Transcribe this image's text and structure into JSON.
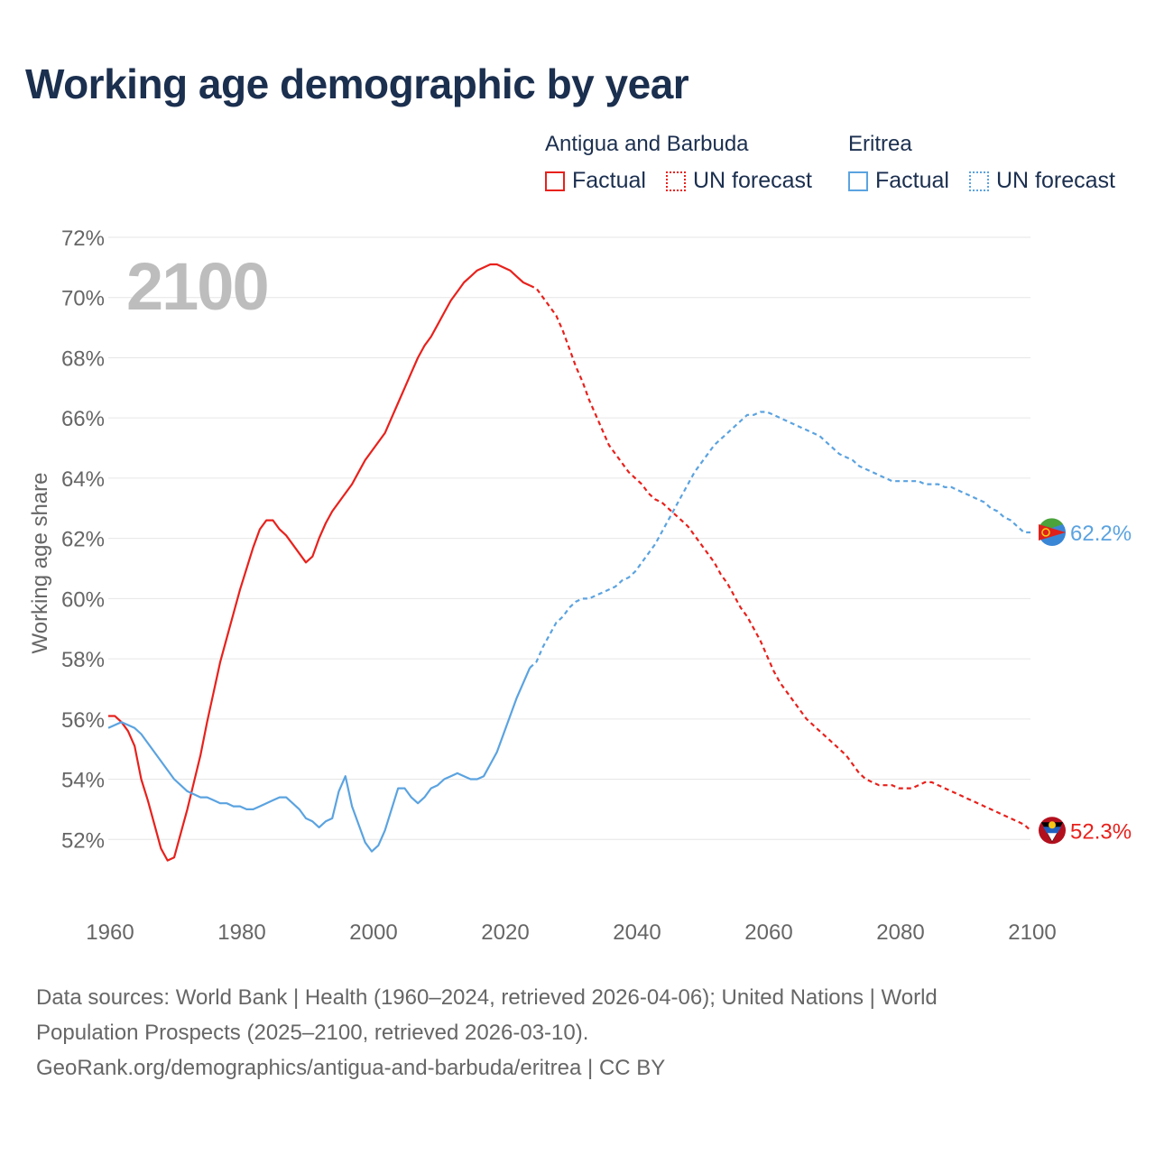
{
  "header": {
    "title": "Working age demographic by year"
  },
  "legend": {
    "groups": [
      {
        "name": "Antigua and Barbuda",
        "factual_label": "Factual",
        "forecast_label": "UN forecast",
        "color": "#e8211c"
      },
      {
        "name": "Eritrea",
        "factual_label": "Factual",
        "forecast_label": "UN forecast",
        "color": "#5ba3e0"
      }
    ]
  },
  "footer": {
    "line1": "Data sources: World Bank | Health (1960–2024, retrieved 2026-04-06); United Nations | World",
    "line2": "Population Prospects (2025–2100, retrieved 2026-03-10).",
    "line3": "GeoRank.org/demographics/antigua-and-barbuda/eritrea | CC BY"
  },
  "chart_data": {
    "type": "line",
    "title": "Working age demographic by year",
    "year_overlay": "2100",
    "xlabel": "",
    "ylabel": "Working age share",
    "xlim": [
      1960,
      2100
    ],
    "ylim": [
      50,
      72
    ],
    "x_ticks": [
      1960,
      1980,
      2000,
      2020,
      2040,
      2060,
      2080,
      2100
    ],
    "y_ticks": [
      52,
      54,
      56,
      58,
      60,
      62,
      64,
      66,
      68,
      70,
      72
    ],
    "y_tick_labels": [
      "52%",
      "54%",
      "56%",
      "58%",
      "60%",
      "62%",
      "64%",
      "66%",
      "68%",
      "70%",
      "72%"
    ],
    "x_tick_labels": [
      "1960",
      "1980",
      "2000",
      "2020",
      "2040",
      "2060",
      "2080",
      "2100"
    ],
    "grid": true,
    "legend_position": "top-right",
    "series": [
      {
        "name": "Antigua and Barbuda",
        "color": "#e8211c",
        "end_label": "52.3%",
        "factual": [
          [
            1960,
            56.1
          ],
          [
            1961,
            56.1
          ],
          [
            1962,
            55.9
          ],
          [
            1963,
            55.6
          ],
          [
            1964,
            55.1
          ],
          [
            1965,
            54.0
          ],
          [
            1966,
            53.3
          ],
          [
            1967,
            52.5
          ],
          [
            1968,
            51.7
          ],
          [
            1969,
            51.3
          ],
          [
            1970,
            51.4
          ],
          [
            1971,
            52.2
          ],
          [
            1972,
            53.0
          ],
          [
            1973,
            53.9
          ],
          [
            1974,
            54.8
          ],
          [
            1975,
            55.9
          ],
          [
            1976,
            56.9
          ],
          [
            1977,
            57.9
          ],
          [
            1978,
            58.7
          ],
          [
            1979,
            59.5
          ],
          [
            1980,
            60.3
          ],
          [
            1981,
            61.0
          ],
          [
            1982,
            61.7
          ],
          [
            1983,
            62.3
          ],
          [
            1984,
            62.6
          ],
          [
            1985,
            62.6
          ],
          [
            1986,
            62.3
          ],
          [
            1987,
            62.1
          ],
          [
            1988,
            61.8
          ],
          [
            1989,
            61.5
          ],
          [
            1990,
            61.2
          ],
          [
            1991,
            61.4
          ],
          [
            1992,
            62.0
          ],
          [
            1993,
            62.5
          ],
          [
            1994,
            62.9
          ],
          [
            1995,
            63.2
          ],
          [
            1996,
            63.5
          ],
          [
            1997,
            63.8
          ],
          [
            1998,
            64.2
          ],
          [
            1999,
            64.6
          ],
          [
            2000,
            64.9
          ],
          [
            2001,
            65.2
          ],
          [
            2002,
            65.5
          ],
          [
            2003,
            66.0
          ],
          [
            2004,
            66.5
          ],
          [
            2005,
            67.0
          ],
          [
            2006,
            67.5
          ],
          [
            2007,
            68.0
          ],
          [
            2008,
            68.4
          ],
          [
            2009,
            68.7
          ],
          [
            2010,
            69.1
          ],
          [
            2011,
            69.5
          ],
          [
            2012,
            69.9
          ],
          [
            2013,
            70.2
          ],
          [
            2014,
            70.5
          ],
          [
            2015,
            70.7
          ],
          [
            2016,
            70.9
          ],
          [
            2017,
            71.0
          ],
          [
            2018,
            71.1
          ],
          [
            2019,
            71.1
          ],
          [
            2020,
            71.0
          ],
          [
            2021,
            70.9
          ],
          [
            2022,
            70.7
          ],
          [
            2023,
            70.5
          ],
          [
            2024,
            70.4
          ]
        ],
        "forecast": [
          [
            2024,
            70.4
          ],
          [
            2025,
            70.3
          ],
          [
            2026,
            70.0
          ],
          [
            2027,
            69.7
          ],
          [
            2028,
            69.4
          ],
          [
            2029,
            68.9
          ],
          [
            2030,
            68.3
          ],
          [
            2031,
            67.7
          ],
          [
            2032,
            67.2
          ],
          [
            2033,
            66.6
          ],
          [
            2034,
            66.1
          ],
          [
            2035,
            65.6
          ],
          [
            2036,
            65.1
          ],
          [
            2037,
            64.8
          ],
          [
            2038,
            64.5
          ],
          [
            2039,
            64.2
          ],
          [
            2040,
            64.0
          ],
          [
            2041,
            63.8
          ],
          [
            2042,
            63.5
          ],
          [
            2043,
            63.3
          ],
          [
            2044,
            63.2
          ],
          [
            2045,
            63.0
          ],
          [
            2046,
            62.8
          ],
          [
            2047,
            62.6
          ],
          [
            2048,
            62.4
          ],
          [
            2049,
            62.1
          ],
          [
            2050,
            61.8
          ],
          [
            2051,
            61.5
          ],
          [
            2052,
            61.2
          ],
          [
            2053,
            60.8
          ],
          [
            2054,
            60.5
          ],
          [
            2055,
            60.1
          ],
          [
            2056,
            59.7
          ],
          [
            2057,
            59.4
          ],
          [
            2058,
            59.0
          ],
          [
            2059,
            58.6
          ],
          [
            2060,
            58.1
          ],
          [
            2061,
            57.6
          ],
          [
            2062,
            57.2
          ],
          [
            2063,
            56.9
          ],
          [
            2064,
            56.6
          ],
          [
            2065,
            56.3
          ],
          [
            2066,
            56.0
          ],
          [
            2067,
            55.8
          ],
          [
            2068,
            55.6
          ],
          [
            2069,
            55.4
          ],
          [
            2070,
            55.2
          ],
          [
            2071,
            55.0
          ],
          [
            2072,
            54.8
          ],
          [
            2073,
            54.5
          ],
          [
            2074,
            54.2
          ],
          [
            2075,
            54.0
          ],
          [
            2076,
            53.9
          ],
          [
            2077,
            53.8
          ],
          [
            2078,
            53.8
          ],
          [
            2079,
            53.8
          ],
          [
            2080,
            53.7
          ],
          [
            2081,
            53.7
          ],
          [
            2082,
            53.7
          ],
          [
            2083,
            53.8
          ],
          [
            2084,
            53.9
          ],
          [
            2085,
            53.9
          ],
          [
            2086,
            53.8
          ],
          [
            2087,
            53.7
          ],
          [
            2088,
            53.6
          ],
          [
            2089,
            53.5
          ],
          [
            2090,
            53.4
          ],
          [
            2091,
            53.3
          ],
          [
            2092,
            53.2
          ],
          [
            2093,
            53.1
          ],
          [
            2094,
            53.0
          ],
          [
            2095,
            52.9
          ],
          [
            2096,
            52.8
          ],
          [
            2097,
            52.7
          ],
          [
            2098,
            52.6
          ],
          [
            2099,
            52.5
          ],
          [
            2100,
            52.3
          ]
        ]
      },
      {
        "name": "Eritrea",
        "color": "#5ba3e0",
        "end_label": "62.2%",
        "factual": [
          [
            1960,
            55.7
          ],
          [
            1961,
            55.8
          ],
          [
            1962,
            55.9
          ],
          [
            1963,
            55.8
          ],
          [
            1964,
            55.7
          ],
          [
            1965,
            55.5
          ],
          [
            1966,
            55.2
          ],
          [
            1967,
            54.9
          ],
          [
            1968,
            54.6
          ],
          [
            1969,
            54.3
          ],
          [
            1970,
            54.0
          ],
          [
            1971,
            53.8
          ],
          [
            1972,
            53.6
          ],
          [
            1973,
            53.5
          ],
          [
            1974,
            53.4
          ],
          [
            1975,
            53.4
          ],
          [
            1976,
            53.3
          ],
          [
            1977,
            53.2
          ],
          [
            1978,
            53.2
          ],
          [
            1979,
            53.1
          ],
          [
            1980,
            53.1
          ],
          [
            1981,
            53.0
          ],
          [
            1982,
            53.0
          ],
          [
            1983,
            53.1
          ],
          [
            1984,
            53.2
          ],
          [
            1985,
            53.3
          ],
          [
            1986,
            53.4
          ],
          [
            1987,
            53.4
          ],
          [
            1988,
            53.2
          ],
          [
            1989,
            53.0
          ],
          [
            1990,
            52.7
          ],
          [
            1991,
            52.6
          ],
          [
            1992,
            52.4
          ],
          [
            1993,
            52.6
          ],
          [
            1994,
            52.7
          ],
          [
            1995,
            53.6
          ],
          [
            1996,
            54.1
          ],
          [
            1997,
            53.1
          ],
          [
            1998,
            52.5
          ],
          [
            1999,
            51.9
          ],
          [
            2000,
            51.6
          ],
          [
            2001,
            51.8
          ],
          [
            2002,
            52.3
          ],
          [
            2003,
            53.0
          ],
          [
            2004,
            53.7
          ],
          [
            2005,
            53.7
          ],
          [
            2006,
            53.4
          ],
          [
            2007,
            53.2
          ],
          [
            2008,
            53.4
          ],
          [
            2009,
            53.7
          ],
          [
            2010,
            53.8
          ],
          [
            2011,
            54.0
          ],
          [
            2012,
            54.1
          ],
          [
            2013,
            54.2
          ],
          [
            2014,
            54.1
          ],
          [
            2015,
            54.0
          ],
          [
            2016,
            54.0
          ],
          [
            2017,
            54.1
          ],
          [
            2018,
            54.5
          ],
          [
            2019,
            54.9
          ],
          [
            2020,
            55.5
          ],
          [
            2021,
            56.1
          ],
          [
            2022,
            56.7
          ],
          [
            2023,
            57.2
          ],
          [
            2024,
            57.7
          ]
        ],
        "forecast": [
          [
            2024,
            57.7
          ],
          [
            2025,
            57.9
          ],
          [
            2026,
            58.4
          ],
          [
            2027,
            58.8
          ],
          [
            2028,
            59.2
          ],
          [
            2029,
            59.4
          ],
          [
            2030,
            59.7
          ],
          [
            2031,
            59.9
          ],
          [
            2032,
            60.0
          ],
          [
            2033,
            60.0
          ],
          [
            2034,
            60.1
          ],
          [
            2035,
            60.2
          ],
          [
            2036,
            60.3
          ],
          [
            2037,
            60.4
          ],
          [
            2038,
            60.6
          ],
          [
            2039,
            60.7
          ],
          [
            2040,
            60.9
          ],
          [
            2041,
            61.2
          ],
          [
            2042,
            61.5
          ],
          [
            2043,
            61.8
          ],
          [
            2044,
            62.2
          ],
          [
            2045,
            62.6
          ],
          [
            2046,
            63.0
          ],
          [
            2047,
            63.4
          ],
          [
            2048,
            63.8
          ],
          [
            2049,
            64.2
          ],
          [
            2050,
            64.5
          ],
          [
            2051,
            64.8
          ],
          [
            2052,
            65.1
          ],
          [
            2053,
            65.3
          ],
          [
            2054,
            65.5
          ],
          [
            2055,
            65.7
          ],
          [
            2056,
            65.9
          ],
          [
            2057,
            66.1
          ],
          [
            2058,
            66.1
          ],
          [
            2059,
            66.2
          ],
          [
            2060,
            66.2
          ],
          [
            2061,
            66.1
          ],
          [
            2062,
            66.0
          ],
          [
            2063,
            65.9
          ],
          [
            2064,
            65.8
          ],
          [
            2065,
            65.7
          ],
          [
            2066,
            65.6
          ],
          [
            2067,
            65.5
          ],
          [
            2068,
            65.4
          ],
          [
            2069,
            65.2
          ],
          [
            2070,
            65.0
          ],
          [
            2071,
            64.8
          ],
          [
            2072,
            64.7
          ],
          [
            2073,
            64.6
          ],
          [
            2074,
            64.4
          ],
          [
            2075,
            64.3
          ],
          [
            2076,
            64.2
          ],
          [
            2077,
            64.1
          ],
          [
            2078,
            64.0
          ],
          [
            2079,
            63.9
          ],
          [
            2080,
            63.9
          ],
          [
            2081,
            63.9
          ],
          [
            2082,
            63.9
          ],
          [
            2083,
            63.9
          ],
          [
            2084,
            63.8
          ],
          [
            2085,
            63.8
          ],
          [
            2086,
            63.8
          ],
          [
            2087,
            63.7
          ],
          [
            2088,
            63.7
          ],
          [
            2089,
            63.6
          ],
          [
            2090,
            63.5
          ],
          [
            2091,
            63.4
          ],
          [
            2092,
            63.3
          ],
          [
            2093,
            63.2
          ],
          [
            2094,
            63.0
          ],
          [
            2095,
            62.9
          ],
          [
            2096,
            62.7
          ],
          [
            2097,
            62.6
          ],
          [
            2098,
            62.4
          ],
          [
            2099,
            62.2
          ],
          [
            2100,
            62.2
          ]
        ]
      }
    ]
  }
}
